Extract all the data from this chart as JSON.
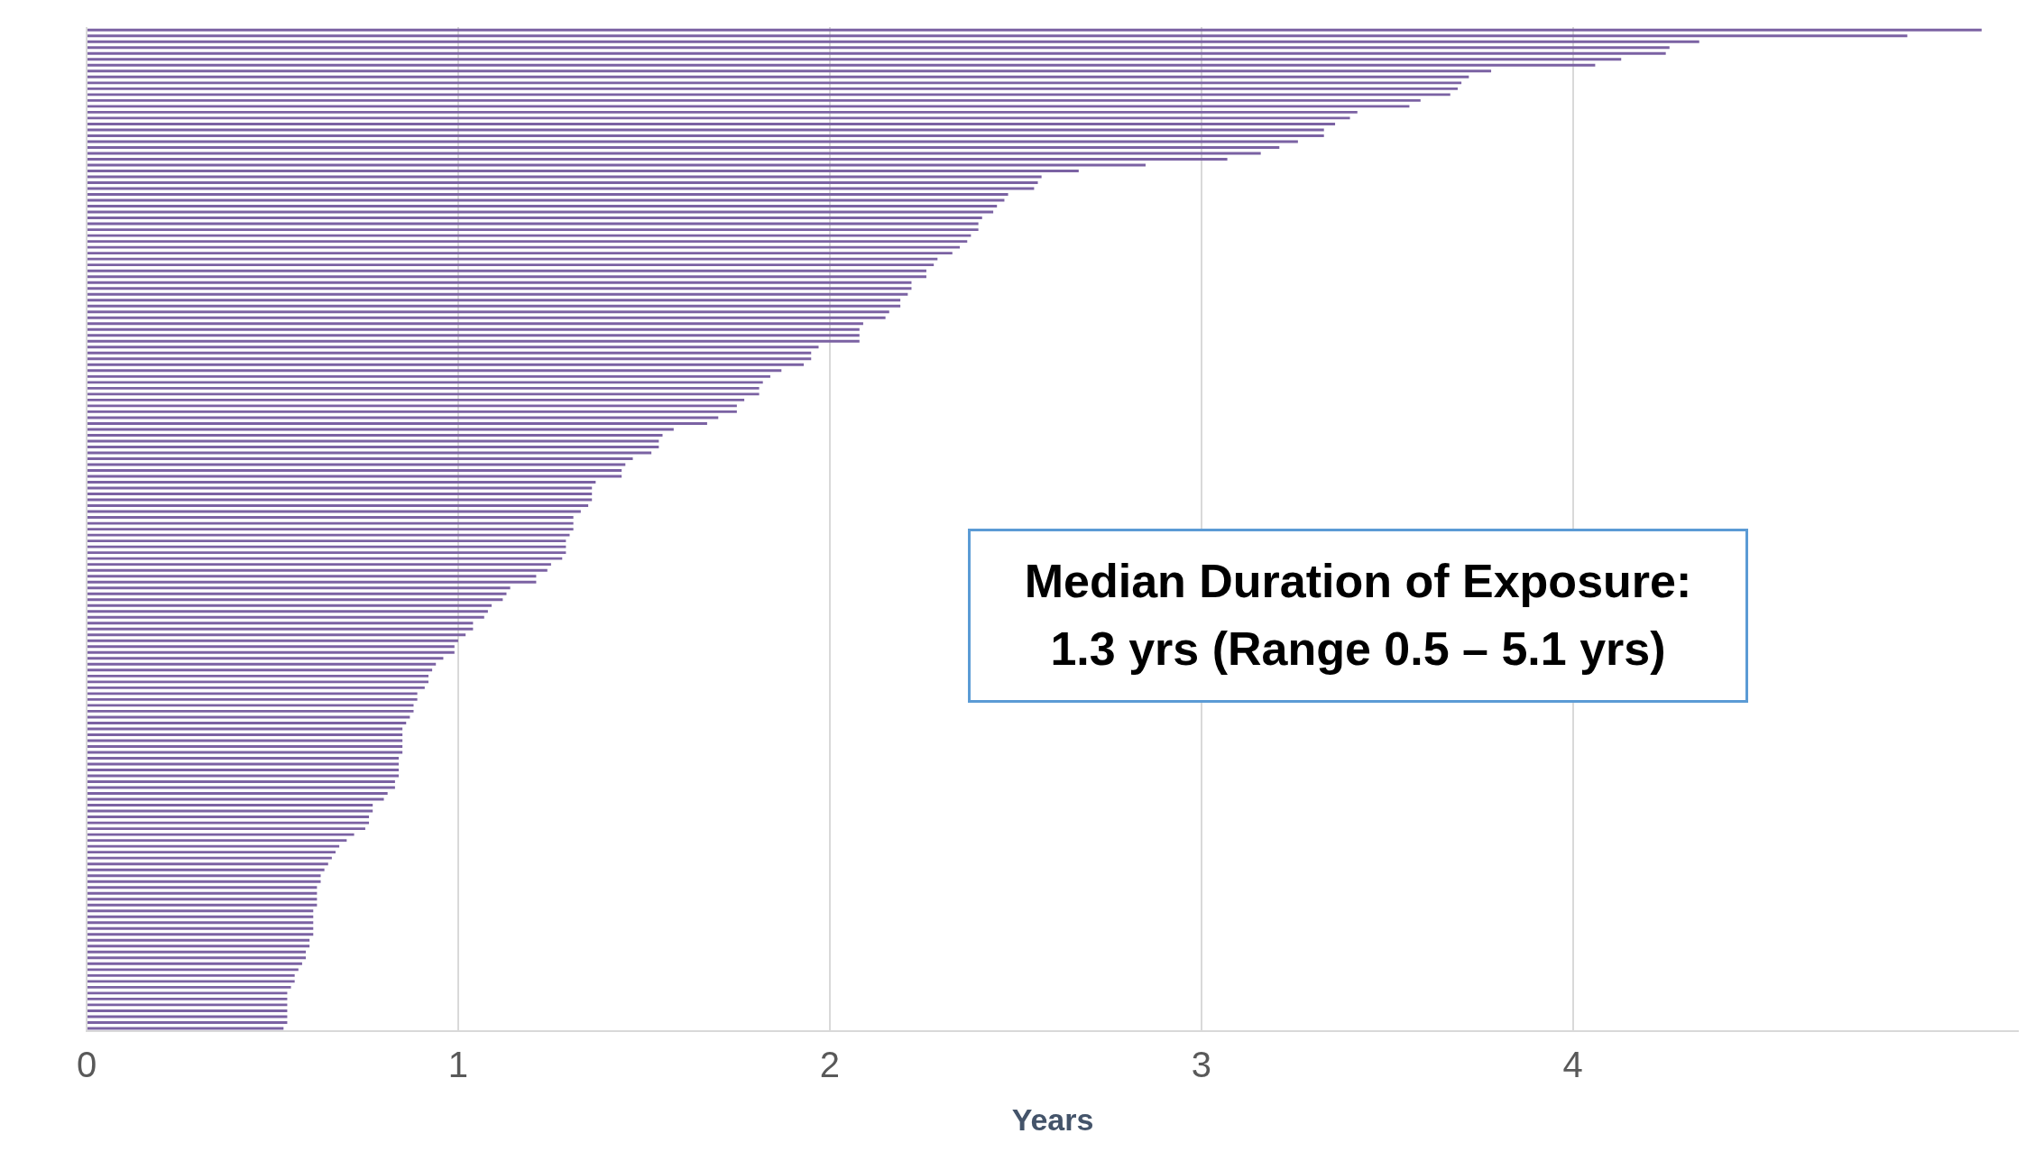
{
  "chart_data": {
    "type": "bar",
    "orientation": "horizontal",
    "xlabel": "Years",
    "categories": [
      null,
      null,
      null,
      null,
      null,
      null,
      null,
      null,
      null,
      null,
      null,
      null,
      null,
      null,
      null,
      null,
      null,
      null,
      null,
      null,
      null,
      null,
      null,
      null,
      null,
      null,
      null,
      null,
      null,
      null,
      null,
      null,
      null,
      null,
      null,
      null,
      null,
      null,
      null,
      null,
      null,
      null,
      null,
      null,
      null,
      null,
      null,
      null,
      null,
      null,
      null,
      null,
      null,
      null,
      null,
      null,
      null,
      null,
      null,
      null,
      null,
      null,
      null,
      null,
      null,
      null,
      null,
      null,
      null,
      null,
      null,
      null,
      null,
      null,
      null,
      null,
      null,
      null,
      null,
      null,
      null,
      null,
      null,
      null,
      null,
      null,
      null,
      null,
      null,
      null,
      null,
      null,
      null,
      null,
      null,
      null,
      null,
      null,
      null,
      null,
      null,
      null,
      null,
      null,
      null,
      null,
      null,
      null,
      null,
      null,
      null,
      null,
      null,
      null,
      null,
      null,
      null,
      null,
      null,
      null,
      null,
      null,
      null,
      null,
      null,
      null,
      null,
      null,
      null,
      null,
      null,
      null,
      null,
      null,
      null,
      null,
      null,
      null,
      null,
      null,
      null,
      null,
      null,
      null,
      null,
      null,
      null,
      null,
      null,
      null,
      null,
      null,
      null,
      null,
      null,
      null,
      null,
      null,
      null,
      null,
      null,
      null,
      null,
      null,
      null,
      null,
      null,
      null,
      null,
      null,
      null
    ],
    "values": [
      5.1,
      4.9,
      4.34,
      4.26,
      4.25,
      4.13,
      4.06,
      3.78,
      3.72,
      3.7,
      3.69,
      3.67,
      3.59,
      3.56,
      3.42,
      3.4,
      3.36,
      3.33,
      3.33,
      3.26,
      3.21,
      3.16,
      3.07,
      2.85,
      2.67,
      2.57,
      2.56,
      2.55,
      2.48,
      2.47,
      2.45,
      2.44,
      2.41,
      2.4,
      2.4,
      2.38,
      2.37,
      2.35,
      2.33,
      2.29,
      2.28,
      2.26,
      2.26,
      2.22,
      2.22,
      2.21,
      2.19,
      2.19,
      2.16,
      2.15,
      2.09,
      2.08,
      2.08,
      2.08,
      1.97,
      1.95,
      1.95,
      1.93,
      1.87,
      1.84,
      1.82,
      1.81,
      1.81,
      1.77,
      1.75,
      1.75,
      1.7,
      1.67,
      1.58,
      1.55,
      1.54,
      1.54,
      1.52,
      1.47,
      1.45,
      1.44,
      1.44,
      1.37,
      1.36,
      1.36,
      1.36,
      1.35,
      1.33,
      1.31,
      1.31,
      1.31,
      1.3,
      1.29,
      1.29,
      1.29,
      1.28,
      1.25,
      1.24,
      1.21,
      1.21,
      1.14,
      1.13,
      1.12,
      1.09,
      1.08,
      1.07,
      1.04,
      1.04,
      1.02,
      1.0,
      0.99,
      0.99,
      0.96,
      0.94,
      0.93,
      0.92,
      0.92,
      0.91,
      0.89,
      0.89,
      0.88,
      0.88,
      0.87,
      0.86,
      0.85,
      0.85,
      0.85,
      0.85,
      0.85,
      0.84,
      0.84,
      0.84,
      0.84,
      0.83,
      0.83,
      0.81,
      0.8,
      0.77,
      0.77,
      0.76,
      0.76,
      0.75,
      0.72,
      0.7,
      0.68,
      0.67,
      0.66,
      0.65,
      0.64,
      0.63,
      0.63,
      0.62,
      0.62,
      0.62,
      0.62,
      0.61,
      0.61,
      0.61,
      0.61,
      0.61,
      0.6,
      0.6,
      0.59,
      0.59,
      0.58,
      0.57,
      0.56,
      0.56,
      0.55,
      0.54,
      0.54,
      0.54,
      0.54,
      0.54,
      0.54,
      0.53
    ],
    "color": "#7b62a3",
    "xlim": [
      0,
      5.2
    ],
    "xticks": [
      0,
      1,
      2,
      3,
      4
    ],
    "grid": "x",
    "annotations": [
      "Median Duration of Exposure:\n1.3 yrs (Range 0.5 – 5.1 yrs)"
    ]
  }
}
